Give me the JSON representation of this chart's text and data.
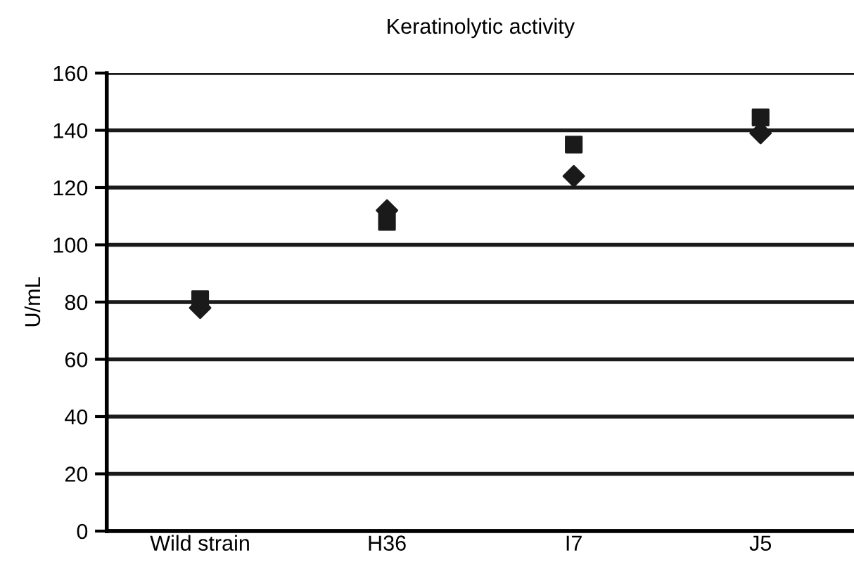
{
  "chart_data": {
    "type": "scatter",
    "title": "Keratinolytic activity",
    "ylabel": "U/mL",
    "categories": [
      "Wild strain",
      "H36",
      "I7",
      "J5"
    ],
    "series": [
      {
        "color": "#1a1a1a",
        "marker": "square",
        "values": [
          81,
          108,
          135,
          144.5
        ]
      },
      {
        "color": "#1a1a1a",
        "marker": "diamond",
        "values": [
          78,
          112,
          124,
          139
        ]
      }
    ],
    "ylim": [
      0,
      160
    ],
    "yticks": [
      0,
      20,
      40,
      60,
      80,
      100,
      120,
      140,
      160
    ],
    "grid": "y",
    "legend": false
  }
}
